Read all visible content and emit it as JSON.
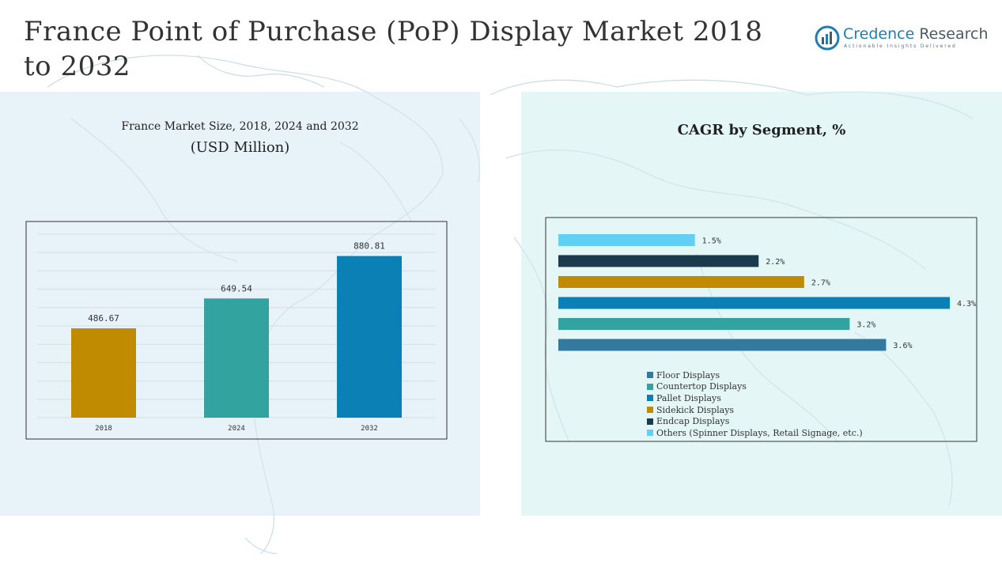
{
  "page": {
    "title": "France Point of Purchase (PoP) Display Market 2018 to 2032"
  },
  "logo": {
    "name_part1": "Credence",
    "name_part2": "Research",
    "tagline": "Actionable Insights Delivered"
  },
  "left_chart": {
    "subtitle": "France Market Size, 2018, 2024 and 2032",
    "unit": "(USD Million)"
  },
  "right_chart": {
    "title": "CAGR by Segment, %"
  },
  "colors": {
    "gold": "#c08b00",
    "teal": "#33a3a0",
    "blue": "#0a80b4",
    "steel": "#3479a0",
    "dark": "#1b3a4b",
    "sky": "#62cff4"
  },
  "chart_data": [
    {
      "type": "bar",
      "title": "France Market Size, 2018, 2024 and 2032",
      "ylabel": "(USD Million)",
      "categories": [
        "2018",
        "2024",
        "2032"
      ],
      "values": [
        486.67,
        649.54,
        880.81
      ],
      "value_labels": [
        "486.67",
        "649.54",
        "880.81"
      ],
      "bar_colors": [
        "#c08b00",
        "#33a3a0",
        "#0a80b4"
      ],
      "ylim": [
        0,
        1000
      ],
      "grid": true
    },
    {
      "type": "bar",
      "orientation": "horizontal",
      "title": "CAGR by Segment, %",
      "categories": [
        "Floor Displays",
        "Countertop Displays",
        "Pallet Displays",
        "Sidekick Displays",
        "Endcap Displays",
        "Others (Spinner Displays, Retail Signage, etc.)"
      ],
      "values": [
        3.6,
        3.2,
        4.3,
        2.7,
        2.2,
        1.5
      ],
      "value_labels": [
        "3.6%",
        "3.2%",
        "4.3%",
        "2.7%",
        "2.2%",
        "1.5%"
      ],
      "bar_colors": [
        "#3479a0",
        "#33a3a0",
        "#0a80b4",
        "#c08b00",
        "#1b3a4b",
        "#62cff4"
      ],
      "xlim": [
        0,
        4.3
      ],
      "legend_position": "bottom"
    }
  ]
}
